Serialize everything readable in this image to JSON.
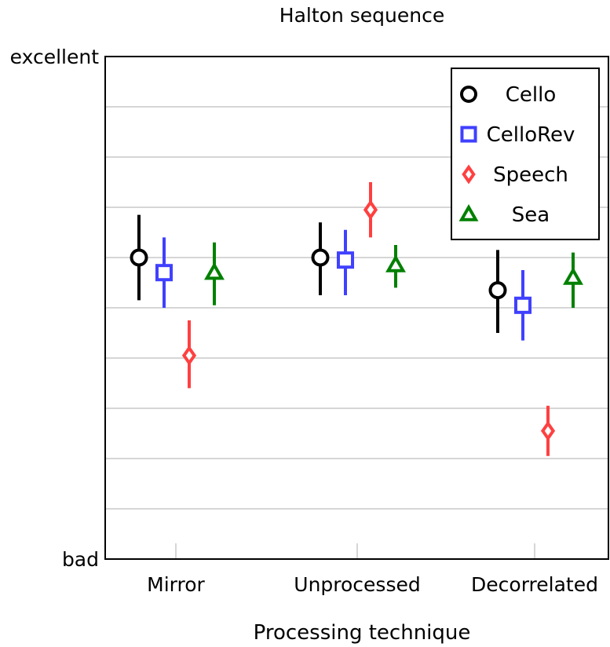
{
  "chart_data": {
    "type": "scatter",
    "title": "Halton sequence",
    "xlabel": "Processing technique",
    "ylabel": "",
    "categories": [
      "Mirror",
      "Unprocessed",
      "Decorrelated"
    ],
    "y_scale": {
      "min": 0,
      "max": 100,
      "tick_labels": [
        {
          "value": 0,
          "label": "bad"
        },
        {
          "value": 100,
          "label": "excellent"
        }
      ],
      "grid_step": 10
    },
    "grid": true,
    "legend_position": "top-right",
    "series": [
      {
        "name": "Cello",
        "marker": "circle",
        "color": "#000000",
        "points": [
          {
            "category": "Mirror",
            "y": 60,
            "low": 51.5,
            "high": 68.5
          },
          {
            "category": "Unprocessed",
            "y": 60,
            "low": 52.5,
            "high": 67
          },
          {
            "category": "Decorrelated",
            "y": 53.5,
            "low": 45,
            "high": 61.5
          }
        ]
      },
      {
        "name": "CelloRev",
        "marker": "square",
        "color": "#4040ff",
        "points": [
          {
            "category": "Mirror",
            "y": 57,
            "low": 50,
            "high": 64
          }
        ],
        "points_rest": [
          {
            "category": "Unprocessed",
            "y": 59.5,
            "low": 52.5,
            "high": 65.5
          },
          {
            "category": "Decorrelated",
            "y": 50.5,
            "low": 43.5,
            "high": 57.5
          }
        ]
      },
      {
        "name": "Speech",
        "marker": "diamond",
        "color": "#ff4040",
        "points": [
          {
            "category": "Mirror",
            "y": 40.5,
            "low": 34,
            "high": 47.5
          },
          {
            "category": "Unprocessed",
            "y": 69.5,
            "low": 64,
            "high": 75
          },
          {
            "category": "Decorrelated",
            "y": 25.5,
            "low": 20.5,
            "high": 30.5
          }
        ]
      },
      {
        "name": "Sea",
        "marker": "triangle",
        "color": "#008000",
        "points": [
          {
            "category": "Mirror",
            "y": 57,
            "low": 50.5,
            "high": 63
          },
          {
            "category": "Unprocessed",
            "y": 58.5,
            "low": 54,
            "high": 62.5
          },
          {
            "category": "Decorrelated",
            "y": 56,
            "low": 50,
            "high": 61
          }
        ]
      }
    ]
  }
}
